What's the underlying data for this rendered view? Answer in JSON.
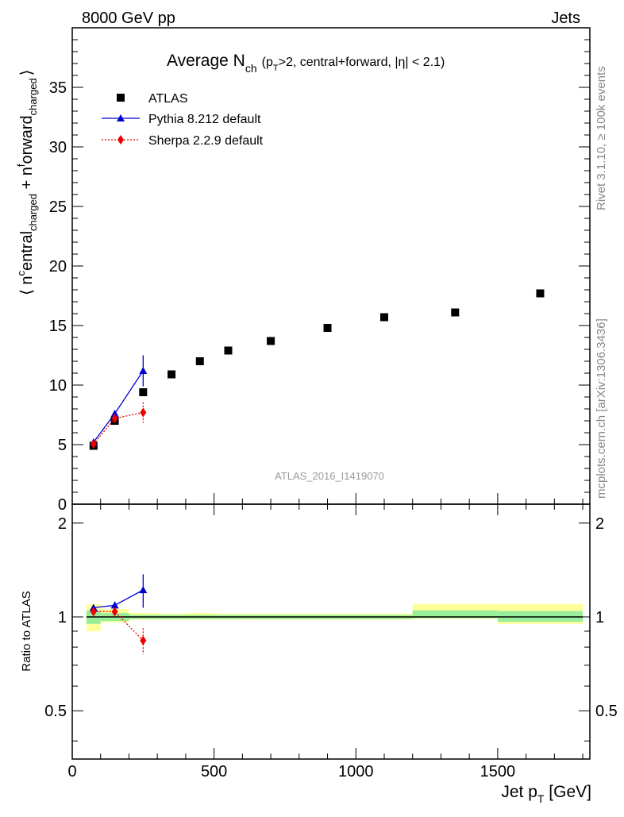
{
  "header": {
    "left_title": "8000 GeV pp",
    "right_title": "Jets"
  },
  "side_labels": {
    "rivet": "Rivet 3.1.10, ≥ 100k events",
    "mcplots": "mcplots.cern.ch [arXiv:1306.3436]"
  },
  "chart_data": [
    {
      "type": "scatter",
      "title": "Average N_ch (p_T>2, central+forward, |η| < 2.1)",
      "title_parts": {
        "main": "Average N",
        "main_sub": "ch",
        "cond_open": "(p",
        "cond_sub": "T",
        "cond_rest": ">2, central+forward, |η| < 2.1)"
      },
      "ylabel": "⟨ n^central_charged + n^forward_charged ⟩",
      "ylabel_parts": {
        "open": "⟨ n",
        "sup1": "c",
        "word1": "entral",
        "sub1": "charged",
        "plus": " + n",
        "sup2": "f",
        "word2": "orward",
        "sub2": "charged",
        "close": "⟩"
      },
      "xlim": [
        0,
        1825
      ],
      "ylim": [
        0,
        40
      ],
      "yticks": [
        0,
        5,
        10,
        15,
        20,
        25,
        30,
        35
      ],
      "watermark": "ATLAS_2016_I1419070",
      "legend_position": "top-left",
      "series": [
        {
          "name": "ATLAS",
          "marker": "square",
          "color": "#000000",
          "x": [
            75,
            150,
            250,
            350,
            450,
            550,
            700,
            900,
            1100,
            1350,
            1650
          ],
          "y": [
            4.9,
            7.0,
            9.4,
            10.9,
            12.0,
            12.9,
            13.7,
            14.8,
            15.7,
            16.1,
            17.7
          ]
        },
        {
          "name": "Pythia 8.212 default",
          "marker": "triangle",
          "color": "#0000cc",
          "line": "solid",
          "x": [
            75,
            150,
            250
          ],
          "y": [
            5.2,
            7.6,
            11.2
          ],
          "yerr": [
            0.15,
            0.2,
            1.3
          ]
        },
        {
          "name": "Sherpa 2.2.9 default",
          "marker": "diamond",
          "color": "#ee0000",
          "line": "dotted",
          "x": [
            75,
            150,
            250
          ],
          "y": [
            5.05,
            7.2,
            7.7
          ],
          "yerr": [
            0.15,
            0.2,
            0.85
          ]
        }
      ]
    },
    {
      "type": "scatter",
      "title": "Ratio to ATLAS",
      "ylabel": "Ratio to ATLAS",
      "xlabel": "Jet p_T [GeV]",
      "xlabel_parts": {
        "main": "Jet p",
        "sub": "T",
        "unit": " [GeV]"
      },
      "xlim": [
        0,
        1825
      ],
      "xticks": [
        0,
        500,
        1000,
        1500
      ],
      "yscale": "log",
      "ylim": [
        0.35,
        2.3
      ],
      "yticks": [
        0.5,
        1,
        2
      ],
      "reference": 1,
      "bands": [
        {
          "xmin": 50,
          "xmax": 100,
          "inner": [
            0.95,
            1.05
          ],
          "outer": [
            0.9,
            1.1
          ]
        },
        {
          "xmin": 100,
          "xmax": 200,
          "inner": [
            0.97,
            1.03
          ],
          "outer": [
            0.96,
            1.06
          ]
        },
        {
          "xmin": 200,
          "xmax": 300,
          "inner": [
            0.985,
            1.015
          ],
          "outer": [
            0.98,
            1.03
          ]
        },
        {
          "xmin": 300,
          "xmax": 400,
          "inner": [
            0.985,
            1.015
          ],
          "outer": [
            0.98,
            1.025
          ]
        },
        {
          "xmin": 400,
          "xmax": 500,
          "inner": [
            0.985,
            1.015
          ],
          "outer": [
            0.98,
            1.03
          ]
        },
        {
          "xmin": 500,
          "xmax": 600,
          "inner": [
            0.985,
            1.015
          ],
          "outer": [
            0.98,
            1.025
          ]
        },
        {
          "xmin": 600,
          "xmax": 800,
          "inner": [
            0.985,
            1.015
          ],
          "outer": [
            0.98,
            1.025
          ]
        },
        {
          "xmin": 800,
          "xmax": 1000,
          "inner": [
            0.985,
            1.015
          ],
          "outer": [
            0.98,
            1.025
          ]
        },
        {
          "xmin": 1000,
          "xmax": 1200,
          "inner": [
            0.985,
            1.015
          ],
          "outer": [
            0.98,
            1.025
          ]
        },
        {
          "xmin": 1200,
          "xmax": 1500,
          "inner": [
            0.99,
            1.05
          ],
          "outer": [
            0.985,
            1.1
          ]
        },
        {
          "xmin": 1500,
          "xmax": 1800,
          "inner": [
            0.965,
            1.045
          ],
          "outer": [
            0.95,
            1.1
          ]
        }
      ],
      "series": [
        {
          "name": "Pythia 8.212 default",
          "marker": "triangle",
          "color": "#0000cc",
          "line": "solid",
          "x": [
            75,
            150,
            250
          ],
          "y": [
            1.07,
            1.09,
            1.22
          ],
          "yerr": [
            0.02,
            0.03,
            0.15
          ]
        },
        {
          "name": "Sherpa 2.2.9 default",
          "marker": "diamond",
          "color": "#ee0000",
          "line": "dotted",
          "x": [
            75,
            150,
            250
          ],
          "y": [
            1.04,
            1.04,
            0.84
          ],
          "yerr": [
            0.02,
            0.03,
            0.08
          ]
        }
      ]
    }
  ],
  "colors": {
    "band_inner": "#99ee99",
    "band_outer": "#ffff99"
  }
}
